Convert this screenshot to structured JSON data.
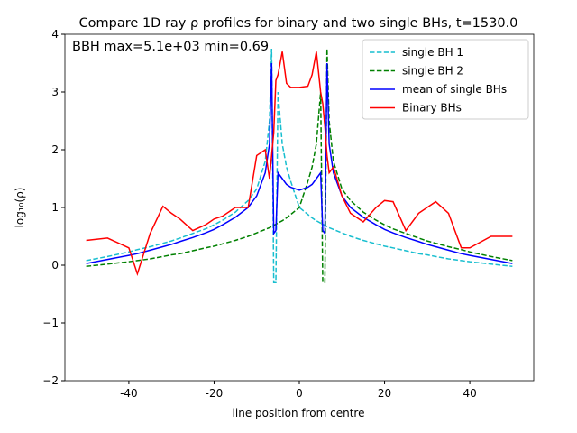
{
  "chart_data": {
    "type": "line",
    "title": "Compare 1D ray ρ profiles for binary and two single BHs, t=1530.0",
    "annotation": "BBH max=5.1e+03 min=0.69",
    "xlabel": "line position from centre",
    "ylabel": "log₁₀(ρ)",
    "xlim": [
      -55,
      55
    ],
    "ylim": [
      -2,
      4
    ],
    "xticks": [
      -40,
      -20,
      0,
      20,
      40
    ],
    "yticks": [
      {
        "value": -2,
        "label": "−2"
      },
      {
        "value": -1,
        "label": "−1"
      },
      0,
      1,
      2,
      3,
      4
    ],
    "legend": "upper right",
    "x": [
      -50,
      -45,
      -40,
      -38,
      -35,
      -32,
      -30,
      -28,
      -25,
      -22,
      -20,
      -18,
      -15,
      -12,
      -10,
      -8,
      -7,
      -6.5,
      -6,
      -5.5,
      -5,
      -4,
      -3,
      -2,
      0,
      2,
      3,
      4,
      5,
      5.5,
      6,
      6.5,
      7,
      8,
      10,
      12,
      15,
      18,
      20,
      22,
      25,
      28,
      30,
      32,
      35,
      38,
      40,
      45,
      50
    ],
    "series": [
      {
        "name": "single BH 1",
        "color": "#17becf",
        "dash": "dashed",
        "values": [
          0.08,
          0.15,
          0.23,
          0.27,
          0.32,
          0.38,
          0.42,
          0.47,
          0.55,
          0.63,
          0.7,
          0.78,
          0.92,
          1.12,
          1.32,
          1.8,
          2.5,
          3.75,
          -0.3,
          -0.3,
          3.0,
          2.1,
          1.7,
          1.45,
          1.0,
          0.88,
          0.82,
          0.77,
          0.73,
          0.71,
          0.69,
          0.67,
          0.65,
          0.62,
          0.56,
          0.5,
          0.43,
          0.37,
          0.33,
          0.3,
          0.25,
          0.2,
          0.18,
          0.15,
          0.11,
          0.08,
          0.06,
          0.02,
          -0.02
        ]
      },
      {
        "name": "single BH 2",
        "color": "#008000",
        "dash": "dashed",
        "values": [
          -0.02,
          0.02,
          0.06,
          0.08,
          0.11,
          0.15,
          0.18,
          0.2,
          0.25,
          0.3,
          0.33,
          0.37,
          0.43,
          0.5,
          0.56,
          0.62,
          0.65,
          0.67,
          0.69,
          0.71,
          0.73,
          0.77,
          0.82,
          0.88,
          1.0,
          1.45,
          1.7,
          2.1,
          3.0,
          -0.3,
          -0.3,
          3.75,
          2.5,
          1.8,
          1.32,
          1.12,
          0.92,
          0.78,
          0.7,
          0.63,
          0.55,
          0.47,
          0.42,
          0.38,
          0.32,
          0.27,
          0.23,
          0.15,
          0.08
        ]
      },
      {
        "name": "mean of single BHs",
        "color": "#0000ff",
        "dash": "solid",
        "values": [
          0.03,
          0.1,
          0.17,
          0.2,
          0.26,
          0.32,
          0.36,
          0.41,
          0.48,
          0.56,
          0.62,
          0.7,
          0.83,
          1.0,
          1.2,
          1.6,
          2.1,
          3.5,
          0.55,
          0.6,
          1.6,
          1.5,
          1.4,
          1.35,
          1.3,
          1.35,
          1.4,
          1.5,
          1.6,
          0.6,
          0.55,
          3.5,
          2.1,
          1.6,
          1.2,
          1.0,
          0.83,
          0.7,
          0.62,
          0.56,
          0.48,
          0.41,
          0.36,
          0.32,
          0.26,
          0.2,
          0.17,
          0.1,
          0.03
        ]
      },
      {
        "name": "Binary BHs",
        "color": "#ff0000",
        "dash": "solid",
        "values": [
          0.43,
          0.47,
          0.3,
          -0.15,
          0.55,
          1.02,
          0.9,
          0.8,
          0.6,
          0.7,
          0.8,
          0.85,
          1.0,
          1.0,
          1.9,
          2.0,
          1.5,
          1.9,
          2.3,
          3.2,
          3.3,
          3.7,
          3.15,
          3.08,
          3.08,
          3.1,
          3.3,
          3.7,
          3.0,
          2.8,
          2.4,
          1.9,
          1.6,
          1.7,
          1.2,
          0.9,
          0.75,
          1.0,
          1.12,
          1.1,
          0.6,
          0.9,
          1.0,
          1.1,
          0.9,
          0.3,
          0.3,
          0.5,
          0.5
        ]
      }
    ]
  }
}
